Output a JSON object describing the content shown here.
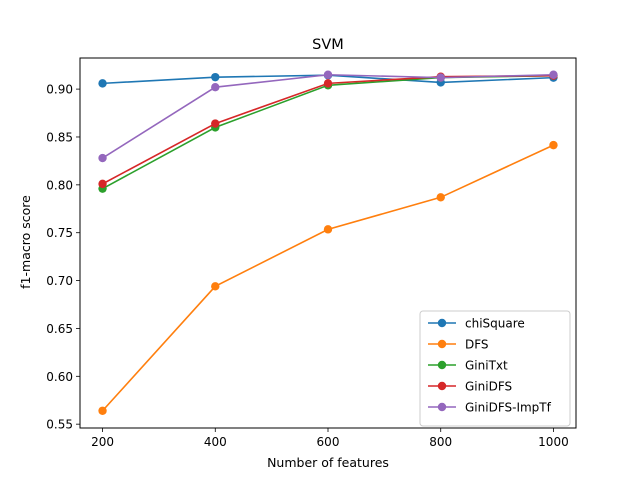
{
  "chart_data": {
    "type": "line",
    "title": "SVM",
    "xlabel": "Number of features",
    "ylabel": "f1-macro score",
    "x": [
      200,
      400,
      600,
      800,
      1000
    ],
    "xticks": [
      "200",
      "400",
      "600",
      "800",
      "1000"
    ],
    "yticks": [
      "0.55",
      "0.60",
      "0.65",
      "0.70",
      "0.75",
      "0.80",
      "0.85",
      "0.90"
    ],
    "xlim": [
      160,
      1040
    ],
    "ylim": [
      0.546,
      0.9325
    ],
    "grid": false,
    "legend_position": "lower-right",
    "series": [
      {
        "name": "chiSquare",
        "color": "#1f77b4",
        "values": [
          0.906,
          0.9125,
          0.9145,
          0.907,
          0.912
        ]
      },
      {
        "name": "DFS",
        "color": "#ff7f0e",
        "values": [
          0.564,
          0.694,
          0.7535,
          0.787,
          0.8415
        ]
      },
      {
        "name": "GiniTxt",
        "color": "#2ca02c",
        "values": [
          0.796,
          0.86,
          0.904,
          0.912,
          0.914
        ]
      },
      {
        "name": "GiniDFS",
        "color": "#d62728",
        "values": [
          0.801,
          0.864,
          0.906,
          0.913,
          0.914
        ]
      },
      {
        "name": "GiniDFS-ImpTf",
        "color": "#9467bd",
        "values": [
          0.828,
          0.902,
          0.915,
          0.912,
          0.915
        ]
      }
    ]
  }
}
